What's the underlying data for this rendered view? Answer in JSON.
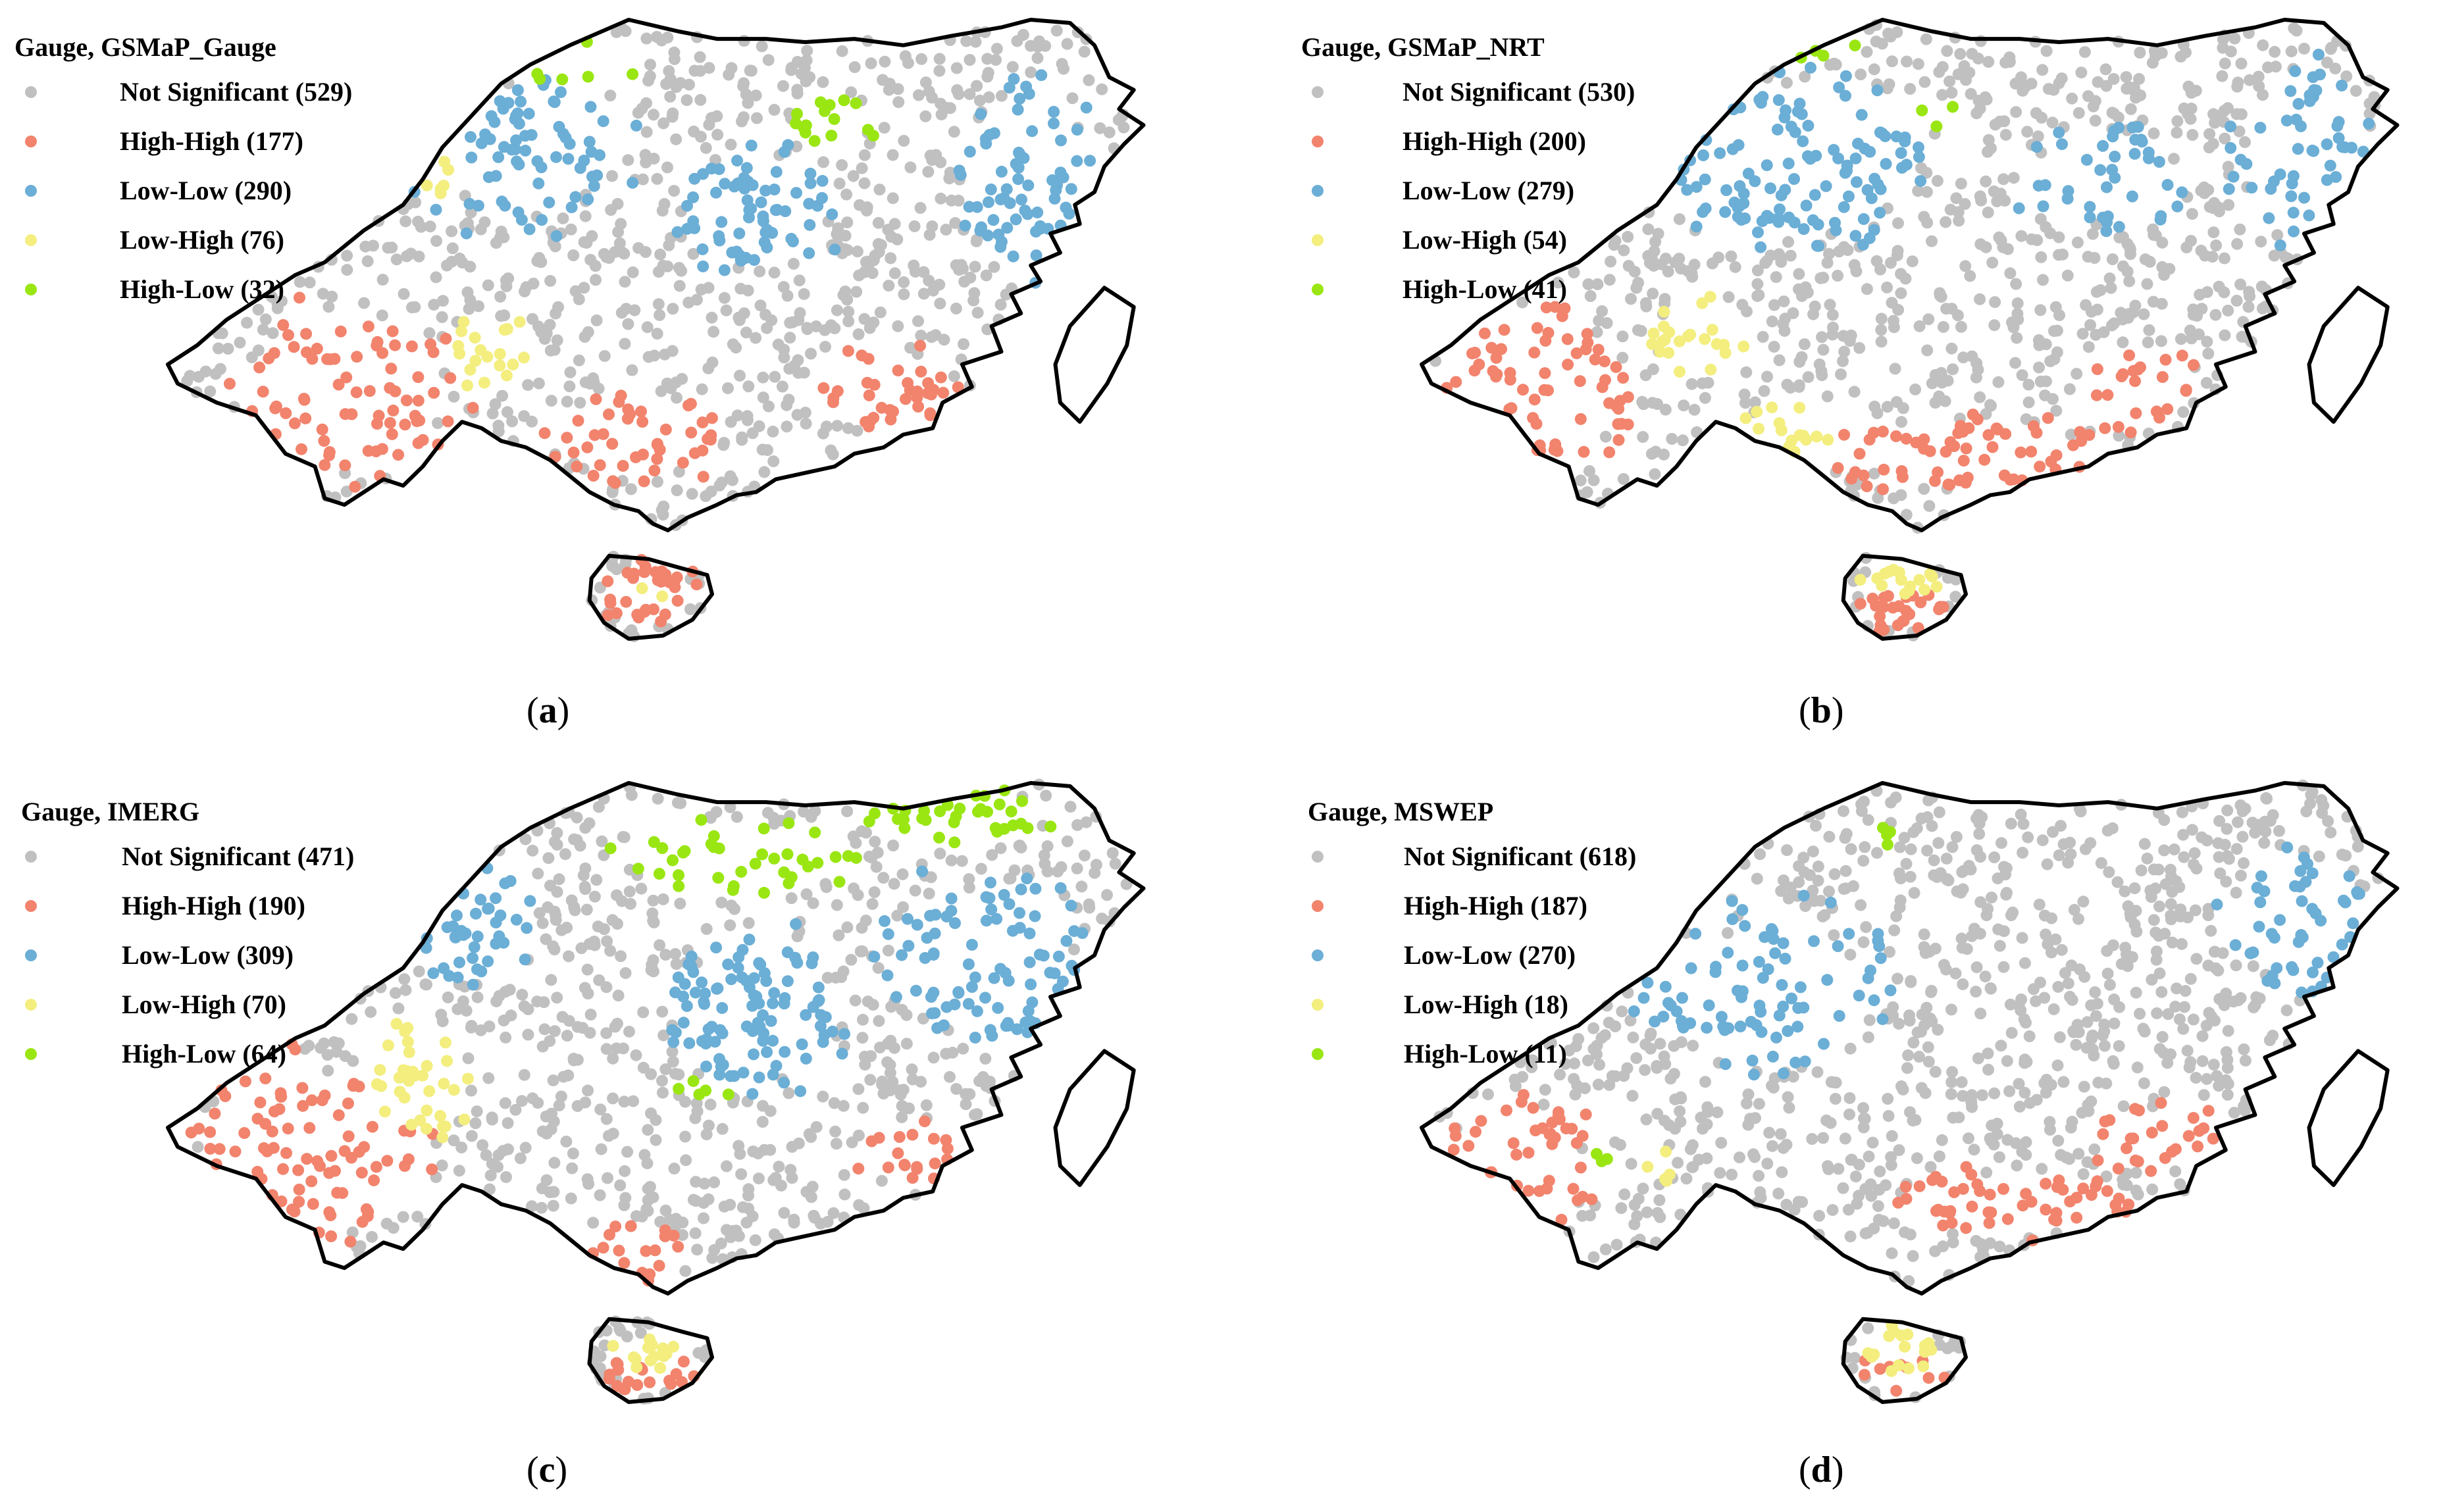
{
  "colors": {
    "not_significant": "#c0c0c0",
    "high_high": "#f2836d",
    "low_low": "#6baed6",
    "low_high": "#f3ee7e",
    "high_low": "#9ae612",
    "outline": "#000000"
  },
  "chart_data": {
    "type": "scatter",
    "categories": [
      "Not Significant",
      "High-High",
      "Low-Low",
      "Low-High",
      "High-Low"
    ],
    "panels": [
      {
        "id": "a",
        "title": "Gauge, GSMaP_Gauge",
        "caption_letter": "a",
        "legend": [
          {
            "key": "not_significant",
            "label": "Not Significant (529)",
            "count": 529
          },
          {
            "key": "high_high",
            "label": "High-High (177)",
            "count": 177
          },
          {
            "key": "low_low",
            "label": "Low-Low (290)",
            "count": 290
          },
          {
            "key": "low_high",
            "label": "Low-High (76)",
            "count": 76
          },
          {
            "key": "high_low",
            "label": "High-Low (32)",
            "count": 32
          }
        ]
      },
      {
        "id": "b",
        "title": "Gauge, GSMaP_NRT",
        "caption_letter": "b",
        "legend": [
          {
            "key": "not_significant",
            "label": "Not Significant (530)",
            "count": 530
          },
          {
            "key": "high_high",
            "label": "High-High (200)",
            "count": 200
          },
          {
            "key": "low_low",
            "label": "Low-Low (279)",
            "count": 279
          },
          {
            "key": "low_high",
            "label": "Low-High (54)",
            "count": 54
          },
          {
            "key": "high_low",
            "label": "High-Low (41)",
            "count": 41
          }
        ]
      },
      {
        "id": "c",
        "title": "Gauge, IMERG",
        "caption_letter": "c",
        "legend": [
          {
            "key": "not_significant",
            "label": "Not Significant (471)",
            "count": 471
          },
          {
            "key": "high_high",
            "label": "High-High (190)",
            "count": 190
          },
          {
            "key": "low_low",
            "label": "Low-Low (309)",
            "count": 309
          },
          {
            "key": "low_high",
            "label": "Low-High (70)",
            "count": 70
          },
          {
            "key": "high_low",
            "label": "High-Low (64)",
            "count": 64
          }
        ]
      },
      {
        "id": "d",
        "title": "Gauge, MSWEP",
        "caption_letter": "d",
        "legend": [
          {
            "key": "not_significant",
            "label": "Not Significant (618)",
            "count": 618
          },
          {
            "key": "high_high",
            "label": "High-High (187)",
            "count": 187
          },
          {
            "key": "low_low",
            "label": "Low-Low (270)",
            "count": 270
          },
          {
            "key": "low_high",
            "label": "Low-High (18)",
            "count": 18
          },
          {
            "key": "high_low",
            "label": "High-Low (11)",
            "count": 11
          }
        ]
      }
    ]
  }
}
